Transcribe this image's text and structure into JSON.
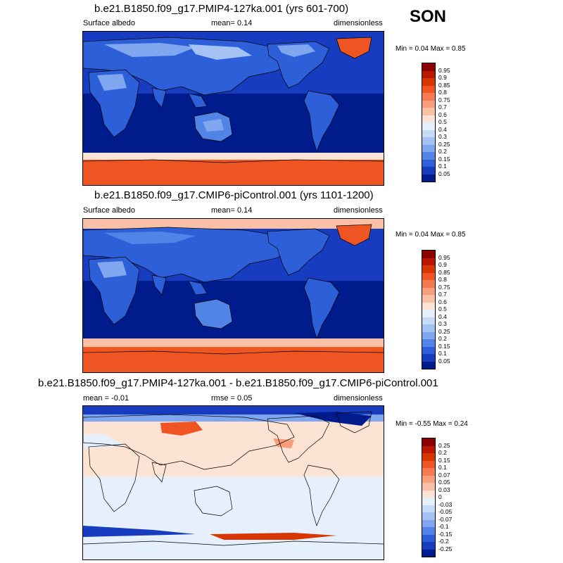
{
  "season": "SON",
  "panels": [
    {
      "title": "b.e21.B1850.f09_g17.PMIP4-127ka.001 (yrs 601-700)",
      "left": "Surface albedo",
      "center": "mean=   0.14",
      "right": "dimensionless",
      "minmax": "Min =   0.04 Max =   0.85"
    },
    {
      "title": "b.e21.B1850.f09_g17.CMIP6-piControl.001 (yrs 1101-1200)",
      "left": "Surface albedo",
      "center": "mean=   0.14",
      "right": "dimensionless",
      "minmax": "Min =   0.04 Max =   0.85"
    },
    {
      "title": "b.e21.B1850.f09_g17.PMIP4-127ka.001 - b.e21.B1850.f09_g17.CMIP6-piControl.001",
      "left": "mean =  -0.01",
      "center": "rmse =   0.05",
      "right": "dimensionless",
      "minmax": "Min =  -0.55 Max =   0.24"
    }
  ],
  "colorbars": [
    {
      "labels": [
        "0.95",
        "0.9",
        "0.85",
        "0.8",
        "0.75",
        "0.7",
        "0.6",
        "0.5",
        "0.4",
        "0.3",
        "0.25",
        "0.2",
        "0.15",
        "0.1",
        "0.05"
      ],
      "colors": [
        "#8b0000",
        "#b81800",
        "#d93500",
        "#ee5522",
        "#f57a4f",
        "#f89e7d",
        "#fac0a6",
        "#fde3d3",
        "#e6f0fc",
        "#c6dbf7",
        "#a4c2f4",
        "#7fa6ee",
        "#5283e6",
        "#2d5fd9",
        "#173cc0",
        "#001c8c"
      ]
    },
    {
      "labels": [
        "0.95",
        "0.9",
        "0.85",
        "0.8",
        "0.75",
        "0.7",
        "0.6",
        "0.5",
        "0.4",
        "0.3",
        "0.25",
        "0.2",
        "0.15",
        "0.1",
        "0.05"
      ],
      "colors": [
        "#8b0000",
        "#b81800",
        "#d93500",
        "#ee5522",
        "#f57a4f",
        "#f89e7d",
        "#fac0a6",
        "#fde3d3",
        "#e6f0fc",
        "#c6dbf7",
        "#a4c2f4",
        "#7fa6ee",
        "#5283e6",
        "#2d5fd9",
        "#173cc0",
        "#001c8c"
      ]
    },
    {
      "labels": [
        "0.25",
        "0.2",
        "0.15",
        "0.1",
        "0.07",
        "0.05",
        "0.03",
        "0",
        "-0.03",
        "-0.05",
        "-0.07",
        "-0.1",
        "-0.15",
        "-0.2",
        "-0.25"
      ],
      "colors": [
        "#8b0000",
        "#b81800",
        "#d93500",
        "#ee5522",
        "#f57a4f",
        "#f89e7d",
        "#fac0a6",
        "#fde3d3",
        "#e6f0fc",
        "#c6dbf7",
        "#a4c2f4",
        "#7fa6ee",
        "#5283e6",
        "#2d5fd9",
        "#173cc0",
        "#001c8c"
      ]
    }
  ]
}
